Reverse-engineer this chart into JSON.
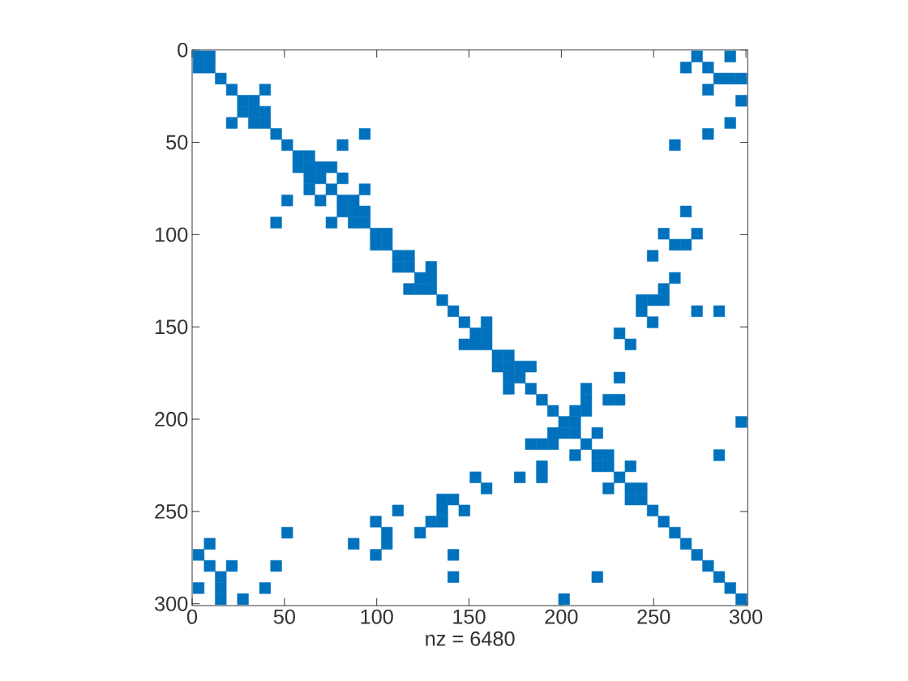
{
  "chart_data": {
    "type": "scatter",
    "xlabel": "nz = 6480",
    "marker": "square",
    "color": "#0072bd",
    "xlim": [
      0,
      301
    ],
    "ylim": [
      301,
      0
    ],
    "xticks": [
      0,
      50,
      100,
      150,
      200,
      250,
      300
    ],
    "yticks": [
      0,
      50,
      100,
      150,
      200,
      250,
      300
    ],
    "series": [
      {
        "x": [
          3.5,
          9.5,
          273.5,
          291.5
        ],
        "values": [
          3.5,
          3.5,
          3.5,
          3.5
        ]
      },
      {
        "x": [
          3.5,
          9.5,
          267.5,
          279.5
        ],
        "values": [
          9.5,
          9.5,
          9.5,
          9.5
        ]
      },
      {
        "x": [
          15.5,
          285.5,
          291.5,
          297.5
        ],
        "values": [
          15.5,
          15.5,
          15.5,
          15.5
        ]
      },
      {
        "x": [
          21.5,
          39.5,
          279.5
        ],
        "values": [
          21.5,
          21.5,
          21.5
        ]
      },
      {
        "x": [
          27.5,
          33.5,
          297.5
        ],
        "values": [
          27.5,
          27.5,
          27.5
        ]
      },
      {
        "x": [
          27.5,
          33.5,
          39.5
        ],
        "values": [
          33.5,
          33.5,
          33.5
        ]
      },
      {
        "x": [
          21.5,
          33.5,
          39.5,
          291.5
        ],
        "values": [
          39.5,
          39.5,
          39.5,
          39.5
        ]
      },
      {
        "x": [
          45.5,
          93.5,
          279.5
        ],
        "values": [
          45.5,
          45.5,
          45.5
        ]
      },
      {
        "x": [
          51.5,
          81.5,
          261.5
        ],
        "values": [
          51.5,
          51.5,
          51.5
        ]
      },
      {
        "x": [
          57.5,
          63.5
        ],
        "values": [
          57.5,
          57.5
        ]
      },
      {
        "x": [
          57.5,
          63.5,
          69.5,
          75.5
        ],
        "values": [
          63.5,
          63.5,
          63.5,
          63.5
        ]
      },
      {
        "x": [
          63.5,
          69.5,
          81.5
        ],
        "values": [
          69.5,
          69.5,
          69.5
        ]
      },
      {
        "x": [
          63.5,
          75.5,
          93.5
        ],
        "values": [
          75.5,
          75.5,
          75.5
        ]
      },
      {
        "x": [
          51.5,
          69.5,
          81.5,
          87.5
        ],
        "values": [
          81.5,
          81.5,
          81.5,
          81.5
        ]
      },
      {
        "x": [
          81.5,
          87.5,
          93.5,
          267.5
        ],
        "values": [
          87.5,
          87.5,
          87.5,
          87.5
        ]
      },
      {
        "x": [
          45.5,
          75.5,
          87.5,
          93.5
        ],
        "values": [
          93.5,
          93.5,
          93.5,
          93.5
        ]
      },
      {
        "x": [
          99.5,
          105.5,
          255.5,
          273.5
        ],
        "values": [
          99.5,
          99.5,
          99.5,
          99.5
        ]
      },
      {
        "x": [
          99.5,
          105.5,
          261.5,
          267.5
        ],
        "values": [
          105.5,
          105.5,
          105.5,
          105.5
        ]
      },
      {
        "x": [
          111.5,
          117.5,
          249.5
        ],
        "values": [
          111.5,
          111.5,
          111.5
        ]
      },
      {
        "x": [
          111.5,
          117.5,
          129.5
        ],
        "values": [
          117.5,
          117.5,
          117.5
        ]
      },
      {
        "x": [
          123.5,
          129.5,
          261.5
        ],
        "values": [
          123.5,
          123.5,
          123.5
        ]
      },
      {
        "x": [
          117.5,
          123.5,
          129.5,
          255.5
        ],
        "values": [
          129.5,
          129.5,
          129.5,
          129.5
        ]
      },
      {
        "x": [
          135.5,
          243.5,
          249.5,
          255.5
        ],
        "values": [
          135.5,
          135.5,
          135.5,
          135.5
        ]
      },
      {
        "x": [
          141.5,
          243.5,
          273.5,
          285.5
        ],
        "values": [
          141.5,
          141.5,
          141.5,
          141.5
        ]
      },
      {
        "x": [
          147.5,
          159.5,
          249.5
        ],
        "values": [
          147.5,
          147.5,
          147.5
        ]
      },
      {
        "x": [
          153.5,
          159.5,
          231.5
        ],
        "values": [
          153.5,
          153.5,
          153.5
        ]
      },
      {
        "x": [
          147.5,
          153.5,
          159.5,
          237.5
        ],
        "values": [
          159.5,
          159.5,
          159.5,
          159.5
        ]
      },
      {
        "x": [
          165.5,
          171.5
        ],
        "values": [
          165.5,
          165.5
        ]
      },
      {
        "x": [
          165.5,
          171.5,
          177.5,
          183.5
        ],
        "values": [
          171.5,
          171.5,
          171.5,
          171.5
        ]
      },
      {
        "x": [
          171.5,
          177.5,
          231.5
        ],
        "values": [
          177.5,
          177.5,
          177.5
        ]
      },
      {
        "x": [
          171.5,
          183.5,
          213.5
        ],
        "values": [
          183.5,
          183.5,
          183.5
        ]
      },
      {
        "x": [
          189.5,
          213.5,
          225.5,
          231.5
        ],
        "values": [
          189.5,
          189.5,
          189.5,
          189.5
        ]
      },
      {
        "x": [
          195.5,
          207.5,
          213.5
        ],
        "values": [
          195.5,
          195.5,
          195.5
        ]
      },
      {
        "x": [
          201.5,
          207.5,
          297.5
        ],
        "values": [
          201.5,
          201.5,
          201.5
        ]
      },
      {
        "x": [
          195.5,
          201.5,
          207.5,
          219.5
        ],
        "values": [
          207.5,
          207.5,
          207.5,
          207.5
        ]
      },
      {
        "x": [
          183.5,
          189.5,
          195.5,
          213.5
        ],
        "values": [
          213.5,
          213.5,
          213.5,
          213.5
        ]
      },
      {
        "x": [
          207.5,
          219.5,
          225.5,
          285.5
        ],
        "values": [
          219.5,
          219.5,
          219.5,
          219.5
        ]
      },
      {
        "x": [
          189.5,
          219.5,
          225.5,
          237.5
        ],
        "values": [
          225.5,
          225.5,
          225.5,
          225.5
        ]
      },
      {
        "x": [
          153.5,
          177.5,
          189.5,
          231.5
        ],
        "values": [
          231.5,
          231.5,
          231.5,
          231.5
        ]
      },
      {
        "x": [
          159.5,
          225.5,
          237.5,
          243.5
        ],
        "values": [
          237.5,
          237.5,
          237.5,
          237.5
        ]
      },
      {
        "x": [
          135.5,
          141.5,
          237.5,
          243.5
        ],
        "values": [
          243.5,
          243.5,
          243.5,
          243.5
        ]
      },
      {
        "x": [
          111.5,
          135.5,
          147.5,
          249.5
        ],
        "values": [
          249.5,
          249.5,
          249.5,
          249.5
        ]
      },
      {
        "x": [
          99.5,
          129.5,
          135.5,
          255.5
        ],
        "values": [
          255.5,
          255.5,
          255.5,
          255.5
        ]
      },
      {
        "x": [
          51.5,
          105.5,
          123.5,
          261.5
        ],
        "values": [
          261.5,
          261.5,
          261.5,
          261.5
        ]
      },
      {
        "x": [
          9.5,
          87.5,
          105.5,
          267.5
        ],
        "values": [
          267.5,
          267.5,
          267.5,
          267.5
        ]
      },
      {
        "x": [
          3.5,
          99.5,
          141.5,
          273.5
        ],
        "values": [
          273.5,
          273.5,
          273.5,
          273.5
        ]
      },
      {
        "x": [
          9.5,
          21.5,
          45.5,
          279.5
        ],
        "values": [
          279.5,
          279.5,
          279.5,
          279.5
        ]
      },
      {
        "x": [
          15.5,
          141.5,
          219.5,
          285.5
        ],
        "values": [
          285.5,
          285.5,
          285.5,
          285.5
        ]
      },
      {
        "x": [
          3.5,
          15.5,
          39.5,
          291.5
        ],
        "values": [
          291.5,
          291.5,
          291.5,
          291.5
        ]
      },
      {
        "x": [
          15.5,
          27.5,
          201.5,
          297.5
        ],
        "values": [
          297.5,
          297.5,
          297.5,
          297.5
        ]
      }
    ]
  }
}
